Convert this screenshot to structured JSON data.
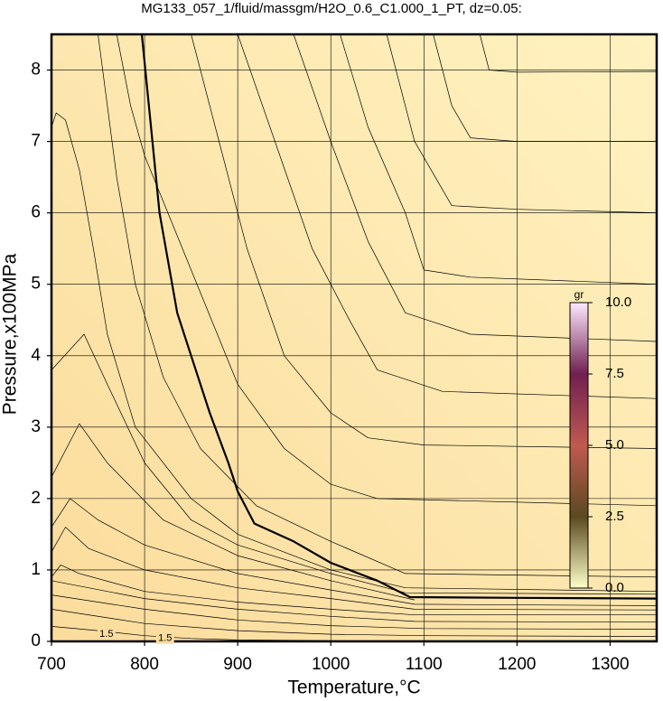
{
  "chart_data": {
    "type": "contour",
    "title": "MG133_057_1/fluid/massgm/H2O_0.6_C1.000_1_PT, dz=0.05:",
    "x_label": "Temperature,°C",
    "y_label": "Pressure,x100MPa",
    "xlim": [
      700,
      1350
    ],
    "ylim": [
      0,
      8.5
    ],
    "xticks": [
      700,
      800,
      900,
      1000,
      1100,
      1200,
      1300
    ],
    "yticks": [
      0,
      1,
      2,
      3,
      4,
      5,
      6,
      7,
      8
    ],
    "grid": true,
    "colorbar": {
      "label": "gr",
      "lim": [
        0,
        10
      ],
      "ticks": [
        {
          "value": 0,
          "label": "0.0"
        },
        {
          "value": 2.5,
          "label": "2.5"
        },
        {
          "value": 5,
          "label": "5.0"
        },
        {
          "value": 7.5,
          "label": "7.5"
        },
        {
          "value": 10,
          "label": "10.0"
        }
      ]
    },
    "annotations": [
      {
        "text": "1.5",
        "x": 759,
        "y": 0.1
      },
      {
        "text": "1.5",
        "x": 822,
        "y": 0.04
      }
    ],
    "series": [
      {
        "color": "#000000",
        "linewidth": 2.2,
        "x": [
          797,
          816,
          835,
          850,
          870,
          890,
          900,
          918,
          960,
          1000,
          1050,
          1085,
          1200,
          1350
        ],
        "y": [
          8.5,
          6.0,
          4.6,
          4.0,
          3.2,
          2.5,
          2.1,
          1.65,
          1.4,
          1.1,
          0.85,
          0.62,
          0.61,
          0.6
        ]
      },
      {
        "color": "#000000",
        "linewidth": 0.7,
        "x": [
          700,
          750,
          800,
          850,
          900,
          1000,
          1350
        ],
        "y": [
          0.21,
          0.15,
          0.08,
          0.04,
          0.02,
          0.01,
          0.01
        ]
      },
      {
        "color": "#000000",
        "linewidth": 0.7,
        "x": [
          700,
          800,
          900,
          1000,
          1100,
          1350
        ],
        "y": [
          0.45,
          0.25,
          0.15,
          0.1,
          0.08,
          0.07
        ]
      },
      {
        "color": "#000000",
        "linewidth": 0.7,
        "x": [
          700,
          800,
          900,
          1000,
          1100,
          1350
        ],
        "y": [
          0.65,
          0.45,
          0.3,
          0.22,
          0.18,
          0.17
        ]
      },
      {
        "color": "#000000",
        "linewidth": 0.7,
        "x": [
          700,
          800,
          900,
          1000,
          1090,
          1350
        ],
        "y": [
          0.85,
          0.6,
          0.45,
          0.35,
          0.28,
          0.27
        ]
      },
      {
        "color": "#000000",
        "linewidth": 0.7,
        "x": [
          700,
          710,
          730,
          800,
          900,
          1000,
          1090,
          1350
        ],
        "y": [
          0.9,
          1.07,
          0.95,
          0.7,
          0.55,
          0.45,
          0.37,
          0.37
        ]
      },
      {
        "color": "#000000",
        "linewidth": 0.7,
        "x": [
          700,
          715,
          740,
          800,
          900,
          1000,
          1090,
          1350
        ],
        "y": [
          1.25,
          1.6,
          1.3,
          1.0,
          0.75,
          0.6,
          0.45,
          0.44
        ]
      },
      {
        "color": "#000000",
        "linewidth": 0.7,
        "x": [
          700,
          720,
          750,
          800,
          900,
          1000,
          1090,
          1350
        ],
        "y": [
          1.6,
          2.0,
          1.7,
          1.35,
          0.95,
          0.72,
          0.52,
          0.5
        ]
      },
      {
        "color": "#000000",
        "linewidth": 0.7,
        "x": [
          700,
          730,
          760,
          820,
          900,
          1000,
          1090
        ],
        "y": [
          2.3,
          3.05,
          2.5,
          1.7,
          1.2,
          0.85,
          0.58
        ]
      },
      {
        "color": "#000000",
        "linewidth": 0.7,
        "x": [
          700,
          735,
          760,
          800,
          850,
          900,
          1000,
          1080,
          1350
        ],
        "y": [
          3.8,
          4.3,
          3.6,
          2.5,
          1.7,
          1.35,
          0.95,
          0.68,
          0.66
        ]
      },
      {
        "color": "#000000",
        "linewidth": 0.7,
        "x": [
          700,
          705,
          715,
          730,
          745,
          760,
          790,
          850,
          900,
          1000,
          1080,
          1350
        ],
        "y": [
          7.2,
          7.4,
          7.3,
          6.6,
          5.5,
          4.3,
          3.0,
          2.0,
          1.5,
          1.0,
          0.75,
          0.7
        ]
      },
      {
        "color": "#000000",
        "linewidth": 0.7,
        "x": [
          750,
          770,
          790,
          820,
          860,
          920,
          1000,
          1080,
          1350
        ],
        "y": [
          8.5,
          6.5,
          5.0,
          3.7,
          2.7,
          1.9,
          1.4,
          0.95,
          0.9
        ]
      },
      {
        "color": "#000000",
        "linewidth": 0.7,
        "x": [
          770,
          785,
          800,
          900,
          950,
          1000,
          1050,
          1350
        ],
        "y": [
          8.5,
          7.5,
          6.8,
          3.6,
          2.7,
          2.2,
          2.0,
          1.9
        ]
      },
      {
        "color": "#000000",
        "linewidth": 0.7,
        "x": [
          850,
          880,
          910,
          950,
          1000,
          1040,
          1100,
          1350
        ],
        "y": [
          8.5,
          7.0,
          5.5,
          4.0,
          3.2,
          2.85,
          2.75,
          2.7
        ]
      },
      {
        "color": "#000000",
        "linewidth": 0.7,
        "x": [
          900,
          940,
          980,
          1020,
          1050,
          1120,
          1350
        ],
        "y": [
          8.5,
          7.0,
          5.5,
          4.5,
          3.8,
          3.5,
          3.4
        ]
      },
      {
        "color": "#000000",
        "linewidth": 0.7,
        "x": [
          960,
          1000,
          1040,
          1080,
          1150,
          1350
        ],
        "y": [
          8.5,
          7.0,
          5.6,
          4.6,
          4.3,
          4.2
        ]
      },
      {
        "color": "#000000",
        "linewidth": 0.7,
        "x": [
          1010,
          1040,
          1080,
          1100,
          1150,
          1350
        ],
        "y": [
          8.5,
          7.2,
          6.0,
          5.2,
          5.1,
          5.0
        ]
      },
      {
        "color": "#000000",
        "linewidth": 0.7,
        "x": [
          1060,
          1090,
          1130,
          1200,
          1350
        ],
        "y": [
          8.5,
          7.0,
          6.1,
          6.05,
          6.0
        ]
      },
      {
        "color": "#000000",
        "linewidth": 0.7,
        "x": [
          1110,
          1130,
          1150,
          1200,
          1350
        ],
        "y": [
          8.5,
          7.5,
          7.05,
          7.0,
          7.0
        ]
      },
      {
        "color": "#000000",
        "linewidth": 0.7,
        "x": [
          1160,
          1170,
          1200,
          1350
        ],
        "y": [
          8.5,
          8.0,
          7.97,
          7.98
        ]
      }
    ]
  }
}
